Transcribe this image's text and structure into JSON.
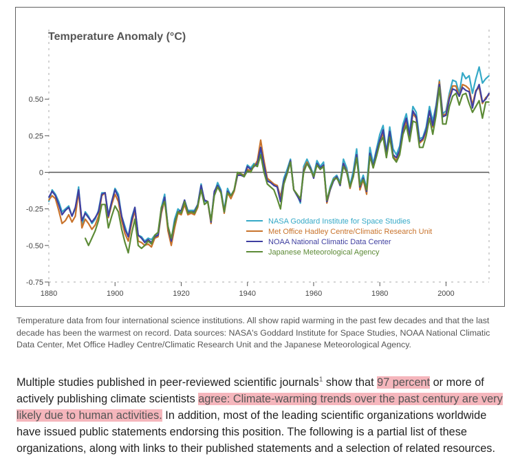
{
  "chart_data": {
    "type": "line",
    "title": "Temperature Anomaly (°C)",
    "xlabel": "",
    "ylabel": "",
    "xlim": [
      1880,
      2013
    ],
    "ylim": [
      -0.75,
      0.75
    ],
    "xticks": [
      1880,
      1900,
      1920,
      1940,
      1960,
      1980,
      2000
    ],
    "yticks": [
      0.5,
      0.25,
      0,
      -0.25,
      -0.5,
      -0.75
    ],
    "ytick_labels": [
      "0.50",
      "0.25",
      "0",
      "-0.25",
      "-0.50",
      "-0.75"
    ],
    "legend_position": "bottom-center",
    "series": [
      {
        "name": "NASA Goddard Institute for Space Studies",
        "color": "#35a9c7",
        "x": [
          1880,
          1881,
          1882,
          1883,
          1884,
          1885,
          1886,
          1887,
          1888,
          1889,
          1890,
          1891,
          1892,
          1893,
          1894,
          1895,
          1896,
          1897,
          1898,
          1899,
          1900,
          1901,
          1902,
          1903,
          1904,
          1905,
          1906,
          1907,
          1908,
          1909,
          1910,
          1911,
          1912,
          1913,
          1914,
          1915,
          1916,
          1917,
          1918,
          1919,
          1920,
          1921,
          1922,
          1923,
          1924,
          1925,
          1926,
          1927,
          1928,
          1929,
          1930,
          1931,
          1932,
          1933,
          1934,
          1935,
          1936,
          1937,
          1938,
          1939,
          1940,
          1941,
          1942,
          1943,
          1944,
          1945,
          1946,
          1947,
          1948,
          1949,
          1950,
          1951,
          1952,
          1953,
          1954,
          1955,
          1956,
          1957,
          1958,
          1959,
          1960,
          1961,
          1962,
          1963,
          1964,
          1965,
          1966,
          1967,
          1968,
          1969,
          1970,
          1971,
          1972,
          1973,
          1974,
          1975,
          1976,
          1977,
          1978,
          1979,
          1980,
          1981,
          1982,
          1983,
          1984,
          1985,
          1986,
          1987,
          1988,
          1989,
          1990,
          1991,
          1992,
          1993,
          1994,
          1995,
          1996,
          1997,
          1998,
          1999,
          2000,
          2001,
          2002,
          2003,
          2004,
          2005,
          2006,
          2007,
          2008,
          2009,
          2010,
          2011,
          2012,
          2013
        ],
        "values": [
          -0.2,
          -0.12,
          -0.15,
          -0.2,
          -0.27,
          -0.25,
          -0.23,
          -0.3,
          -0.25,
          -0.1,
          -0.37,
          -0.27,
          -0.3,
          -0.35,
          -0.32,
          -0.26,
          -0.14,
          -0.14,
          -0.29,
          -0.2,
          -0.11,
          -0.15,
          -0.3,
          -0.37,
          -0.44,
          -0.31,
          -0.24,
          -0.43,
          -0.44,
          -0.47,
          -0.45,
          -0.46,
          -0.43,
          -0.43,
          -0.24,
          -0.15,
          -0.38,
          -0.46,
          -0.32,
          -0.25,
          -0.27,
          -0.19,
          -0.26,
          -0.26,
          -0.26,
          -0.22,
          -0.08,
          -0.2,
          -0.2,
          -0.33,
          -0.14,
          -0.07,
          -0.12,
          -0.26,
          -0.11,
          -0.16,
          -0.12,
          -0.01,
          -0.01,
          -0.02,
          0.05,
          0.03,
          0.06,
          0.04,
          0.15,
          0.03,
          -0.05,
          -0.06,
          -0.09,
          -0.09,
          -0.17,
          -0.04,
          0.02,
          0.09,
          -0.12,
          -0.15,
          -0.21,
          0.04,
          0.09,
          0.04,
          -0.02,
          0.08,
          0.04,
          0.07,
          -0.2,
          -0.1,
          -0.04,
          -0.02,
          -0.07,
          0.09,
          0.03,
          -0.09,
          0.01,
          0.16,
          -0.08,
          -0.02,
          -0.11,
          0.17,
          0.06,
          0.16,
          0.26,
          0.32,
          0.14,
          0.31,
          0.16,
          0.12,
          0.18,
          0.33,
          0.4,
          0.27,
          0.45,
          0.41,
          0.23,
          0.24,
          0.31,
          0.45,
          0.35,
          0.46,
          0.63,
          0.4,
          0.42,
          0.54,
          0.63,
          0.62,
          0.54,
          0.68,
          0.64,
          0.66,
          0.54,
          0.64,
          0.72,
          0.61,
          0.64,
          0.66
        ]
      },
      {
        "name": "Met Office Hadley Centre/Climatic Research Unit",
        "color": "#c8732c",
        "x": [
          1880,
          1881,
          1882,
          1883,
          1884,
          1885,
          1886,
          1887,
          1888,
          1889,
          1890,
          1891,
          1892,
          1893,
          1894,
          1895,
          1896,
          1897,
          1898,
          1899,
          1900,
          1901,
          1902,
          1903,
          1904,
          1905,
          1906,
          1907,
          1908,
          1909,
          1910,
          1911,
          1912,
          1913,
          1914,
          1915,
          1916,
          1917,
          1918,
          1919,
          1920,
          1921,
          1922,
          1923,
          1924,
          1925,
          1926,
          1927,
          1928,
          1929,
          1930,
          1931,
          1932,
          1933,
          1934,
          1935,
          1936,
          1937,
          1938,
          1939,
          1940,
          1941,
          1942,
          1943,
          1944,
          1945,
          1946,
          1947,
          1948,
          1949,
          1950,
          1951,
          1952,
          1953,
          1954,
          1955,
          1956,
          1957,
          1958,
          1959,
          1960,
          1961,
          1962,
          1963,
          1964,
          1965,
          1966,
          1967,
          1968,
          1969,
          1970,
          1971,
          1972,
          1973,
          1974,
          1975,
          1976,
          1977,
          1978,
          1979,
          1980,
          1981,
          1982,
          1983,
          1984,
          1985,
          1986,
          1987,
          1988,
          1989,
          1990,
          1991,
          1992,
          1993,
          1994,
          1995,
          1996,
          1997,
          1998,
          1999,
          2000,
          2001,
          2002,
          2003,
          2004,
          2005,
          2006,
          2007,
          2008,
          2009,
          2010,
          2011,
          2012,
          2013
        ],
        "values": [
          -0.19,
          -0.16,
          -0.18,
          -0.26,
          -0.35,
          -0.33,
          -0.29,
          -0.34,
          -0.3,
          -0.13,
          -0.38,
          -0.32,
          -0.35,
          -0.39,
          -0.36,
          -0.3,
          -0.16,
          -0.14,
          -0.31,
          -0.22,
          -0.15,
          -0.2,
          -0.33,
          -0.42,
          -0.47,
          -0.35,
          -0.26,
          -0.47,
          -0.48,
          -0.5,
          -0.49,
          -0.51,
          -0.45,
          -0.44,
          -0.28,
          -0.19,
          -0.4,
          -0.5,
          -0.38,
          -0.28,
          -0.29,
          -0.22,
          -0.29,
          -0.28,
          -0.29,
          -0.24,
          -0.1,
          -0.19,
          -0.2,
          -0.35,
          -0.14,
          -0.1,
          -0.14,
          -0.28,
          -0.14,
          -0.18,
          -0.13,
          -0.02,
          -0.01,
          -0.02,
          0.02,
          0.01,
          0.04,
          0.08,
          0.22,
          0.08,
          -0.04,
          -0.06,
          -0.08,
          -0.09,
          -0.17,
          -0.06,
          0.0,
          0.08,
          -0.12,
          -0.15,
          -0.2,
          0.02,
          0.07,
          0.03,
          -0.03,
          0.05,
          0.02,
          0.05,
          -0.21,
          -0.12,
          -0.05,
          -0.03,
          -0.09,
          0.06,
          0.01,
          -0.11,
          -0.02,
          0.12,
          -0.12,
          -0.05,
          -0.15,
          0.12,
          0.03,
          0.12,
          0.21,
          0.27,
          0.11,
          0.26,
          0.11,
          0.08,
          0.14,
          0.28,
          0.35,
          0.24,
          0.4,
          0.37,
          0.2,
          0.22,
          0.28,
          0.42,
          0.31,
          0.44,
          0.62,
          0.39,
          0.4,
          0.52,
          0.59,
          0.59,
          0.52,
          0.6,
          0.59,
          0.57,
          0.46,
          0.56,
          0.58,
          0.47,
          0.51,
          0.53
        ]
      },
      {
        "name": "NOAA National Climatic Data Center",
        "color": "#3f3fa0",
        "x": [
          1880,
          1881,
          1882,
          1883,
          1884,
          1885,
          1886,
          1887,
          1888,
          1889,
          1890,
          1891,
          1892,
          1893,
          1894,
          1895,
          1896,
          1897,
          1898,
          1899,
          1900,
          1901,
          1902,
          1903,
          1904,
          1905,
          1906,
          1907,
          1908,
          1909,
          1910,
          1911,
          1912,
          1913,
          1914,
          1915,
          1916,
          1917,
          1918,
          1919,
          1920,
          1921,
          1922,
          1923,
          1924,
          1925,
          1926,
          1927,
          1928,
          1929,
          1930,
          1931,
          1932,
          1933,
          1934,
          1935,
          1936,
          1937,
          1938,
          1939,
          1940,
          1941,
          1942,
          1943,
          1944,
          1945,
          1946,
          1947,
          1948,
          1949,
          1950,
          1951,
          1952,
          1953,
          1954,
          1955,
          1956,
          1957,
          1958,
          1959,
          1960,
          1961,
          1962,
          1963,
          1964,
          1965,
          1966,
          1967,
          1968,
          1969,
          1970,
          1971,
          1972,
          1973,
          1974,
          1975,
          1976,
          1977,
          1978,
          1979,
          1980,
          1981,
          1982,
          1983,
          1984,
          1985,
          1986,
          1987,
          1988,
          1989,
          1990,
          1991,
          1992,
          1993,
          1994,
          1995,
          1996,
          1997,
          1998,
          1999,
          2000,
          2001,
          2002,
          2003,
          2004,
          2005,
          2006,
          2007,
          2008,
          2009,
          2010,
          2011,
          2012,
          2013
        ],
        "values": [
          -0.17,
          -0.13,
          -0.16,
          -0.22,
          -0.29,
          -0.26,
          -0.24,
          -0.3,
          -0.24,
          -0.12,
          -0.33,
          -0.28,
          -0.31,
          -0.34,
          -0.31,
          -0.27,
          -0.15,
          -0.14,
          -0.3,
          -0.2,
          -0.12,
          -0.17,
          -0.3,
          -0.39,
          -0.44,
          -0.33,
          -0.24,
          -0.43,
          -0.45,
          -0.48,
          -0.46,
          -0.48,
          -0.44,
          -0.43,
          -0.26,
          -0.17,
          -0.37,
          -0.47,
          -0.34,
          -0.27,
          -0.26,
          -0.19,
          -0.27,
          -0.27,
          -0.27,
          -0.22,
          -0.09,
          -0.19,
          -0.2,
          -0.34,
          -0.13,
          -0.09,
          -0.13,
          -0.27,
          -0.13,
          -0.16,
          -0.12,
          -0.02,
          -0.02,
          -0.03,
          0.04,
          0.02,
          0.04,
          0.06,
          0.17,
          0.05,
          -0.06,
          -0.07,
          -0.09,
          -0.1,
          -0.2,
          -0.06,
          0.0,
          0.08,
          -0.12,
          -0.16,
          -0.2,
          0.01,
          0.06,
          0.03,
          -0.04,
          0.06,
          0.03,
          0.05,
          -0.2,
          -0.12,
          -0.06,
          -0.03,
          -0.09,
          0.06,
          0.0,
          -0.1,
          -0.02,
          0.12,
          -0.1,
          -0.04,
          -0.13,
          0.13,
          0.04,
          0.14,
          0.22,
          0.29,
          0.13,
          0.28,
          0.12,
          0.1,
          0.15,
          0.3,
          0.37,
          0.25,
          0.42,
          0.38,
          0.21,
          0.23,
          0.29,
          0.42,
          0.32,
          0.44,
          0.6,
          0.38,
          0.39,
          0.5,
          0.57,
          0.56,
          0.52,
          0.58,
          0.56,
          0.55,
          0.44,
          0.55,
          0.6,
          0.48,
          0.5,
          0.54
        ]
      },
      {
        "name": "Japanese Meteorological Agency",
        "color": "#5c8a36",
        "x": [
          1891,
          1892,
          1893,
          1894,
          1895,
          1896,
          1897,
          1898,
          1899,
          1900,
          1901,
          1902,
          1903,
          1904,
          1905,
          1906,
          1907,
          1908,
          1909,
          1910,
          1911,
          1912,
          1913,
          1914,
          1915,
          1916,
          1917,
          1918,
          1919,
          1920,
          1921,
          1922,
          1923,
          1924,
          1925,
          1926,
          1927,
          1928,
          1929,
          1930,
          1931,
          1932,
          1933,
          1934,
          1935,
          1936,
          1937,
          1938,
          1939,
          1940,
          1941,
          1942,
          1943,
          1944,
          1945,
          1946,
          1947,
          1948,
          1949,
          1950,
          1951,
          1952,
          1953,
          1954,
          1955,
          1956,
          1957,
          1958,
          1959,
          1960,
          1961,
          1962,
          1963,
          1964,
          1965,
          1966,
          1967,
          1968,
          1969,
          1970,
          1971,
          1972,
          1973,
          1974,
          1975,
          1976,
          1977,
          1978,
          1979,
          1980,
          1981,
          1982,
          1983,
          1984,
          1985,
          1986,
          1987,
          1988,
          1989,
          1990,
          1991,
          1992,
          1993,
          1994,
          1995,
          1996,
          1997,
          1998,
          1999,
          2000,
          2001,
          2002,
          2003,
          2004,
          2005,
          2006,
          2007,
          2008,
          2009,
          2010,
          2011,
          2012,
          2013
        ],
        "values": [
          -0.45,
          -0.5,
          -0.45,
          -0.4,
          -0.33,
          -0.22,
          -0.22,
          -0.38,
          -0.3,
          -0.23,
          -0.27,
          -0.39,
          -0.48,
          -0.55,
          -0.42,
          -0.32,
          -0.5,
          -0.52,
          -0.5,
          -0.47,
          -0.49,
          -0.43,
          -0.41,
          -0.24,
          -0.2,
          -0.37,
          -0.45,
          -0.35,
          -0.27,
          -0.28,
          -0.2,
          -0.28,
          -0.27,
          -0.28,
          -0.23,
          -0.12,
          -0.22,
          -0.2,
          -0.33,
          -0.16,
          -0.1,
          -0.14,
          -0.27,
          -0.14,
          -0.16,
          -0.12,
          0.0,
          -0.01,
          -0.03,
          0.01,
          0.0,
          0.05,
          0.04,
          0.12,
          0.0,
          -0.08,
          -0.1,
          -0.12,
          -0.18,
          -0.25,
          -0.08,
          -0.01,
          0.07,
          -0.12,
          -0.15,
          -0.18,
          0.0,
          0.06,
          0.02,
          -0.03,
          0.05,
          0.02,
          0.04,
          -0.19,
          -0.11,
          -0.05,
          -0.04,
          -0.08,
          0.04,
          0.0,
          -0.1,
          -0.03,
          0.1,
          -0.09,
          -0.05,
          -0.12,
          0.11,
          0.03,
          0.11,
          0.2,
          0.24,
          0.1,
          0.24,
          0.1,
          0.07,
          0.12,
          0.26,
          0.32,
          0.21,
          0.35,
          0.34,
          0.17,
          0.17,
          0.25,
          0.37,
          0.26,
          0.39,
          0.58,
          0.33,
          0.33,
          0.45,
          0.52,
          0.54,
          0.46,
          0.53,
          0.54,
          0.47,
          0.41,
          0.45,
          0.49,
          0.37,
          0.48,
          0.48
        ]
      }
    ]
  },
  "caption": {
    "text": "Temperature data from four international science institutions. All show rapid warming in the past few decades and that the last decade has been the warmest on record. Data sources: NASA's Goddard Institute for Space Studies, NOAA National Climatic Data Center, Met Office Hadley Centre/Climatic Research Unit and the Japanese Meteorological Agency."
  },
  "article": {
    "part1": "Multiple studies published in peer-reviewed scientific journals",
    "footnote": "1",
    "part2": " show that ",
    "highlight1": "97 percent",
    "part3": " or more of actively publishing climate scientists ",
    "highlight2": "agree: Climate-warming trends over the past century are very likely due to human activities.",
    "part4": " In addition, most of the leading scientific organizations worldwide have issued public statements endorsing this position. The following is a partial list of these organizations, along with links to their published statements and a selection of related resources."
  },
  "colors": {
    "axis": "#555555",
    "zero_line": "#555555",
    "highlight": "#f5b6bc"
  }
}
